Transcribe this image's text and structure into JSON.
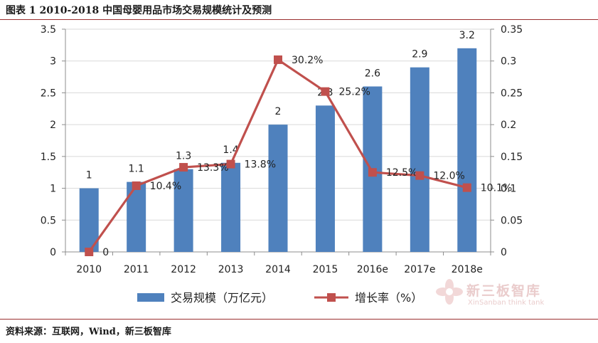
{
  "header": {
    "title": "图表 1 2010-2018 中国母婴用品市场交易规模统计及预测"
  },
  "footer": {
    "source": "资料来源：互联网，Wind，新三板智库"
  },
  "watermark": {
    "name_cn": "新三板智库",
    "name_en": "XinSanban think tank",
    "icon": "lotus-logo-icon"
  },
  "chart_data": {
    "type": "bar",
    "categories": [
      "2010",
      "2011",
      "2012",
      "2013",
      "2014",
      "2015",
      "2016e",
      "2017e",
      "2018e"
    ],
    "series": [
      {
        "name": "交易规模（万亿元）",
        "type": "bar",
        "axis": "left",
        "color": "#4f81bd",
        "values": [
          1,
          1.1,
          1.3,
          1.4,
          2,
          2.3,
          2.6,
          2.9,
          3.2
        ],
        "labels": [
          "1",
          "1.1",
          "1.3",
          "1.4",
          "2",
          "2.3",
          "2.6",
          "2.9",
          "3.2"
        ]
      },
      {
        "name": "增长率（%）",
        "type": "line",
        "axis": "right",
        "color": "#c0504d",
        "values": [
          0,
          0.104,
          0.133,
          0.138,
          0.302,
          0.252,
          0.125,
          0.12,
          0.101
        ],
        "labels": [
          "0",
          "10.4%",
          "13.3%",
          "13.8%",
          "30.2%",
          "25.2%",
          "12.5%",
          "12.0%",
          "10.1%"
        ]
      }
    ],
    "y_left": {
      "min": 0,
      "max": 3.5,
      "ticks": [
        "0",
        "0.5",
        "1",
        "1.5",
        "2",
        "2.5",
        "3",
        "3.5"
      ]
    },
    "y_right": {
      "min": 0,
      "max": 0.35,
      "ticks": [
        "0",
        "0.05",
        "0.1",
        "0.15",
        "0.2",
        "0.25",
        "0.3",
        "0.35"
      ]
    },
    "grid": true,
    "legend": "bottom"
  }
}
